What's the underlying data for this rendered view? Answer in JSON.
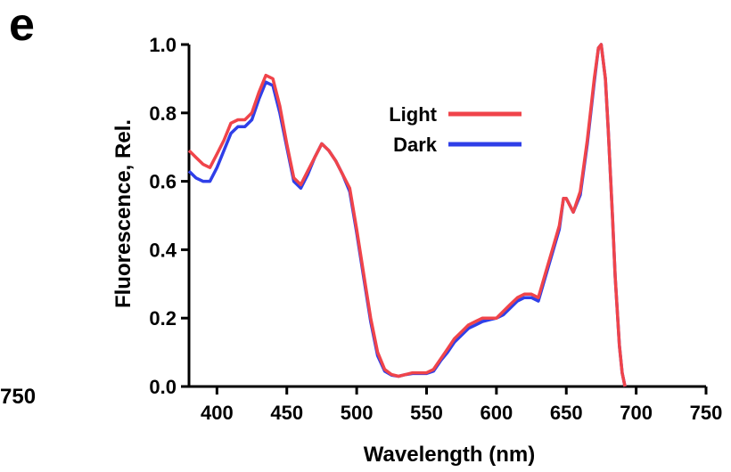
{
  "panel_label": "e",
  "clipped_label": "750",
  "chart_data": {
    "type": "line",
    "title": "",
    "xlabel": "Wavelength (nm)",
    "ylabel": "Fluorescence, Rel.",
    "xlim": [
      380,
      750
    ],
    "ylim": [
      0,
      1.0
    ],
    "xticks": [
      400,
      450,
      500,
      550,
      600,
      650,
      700,
      750
    ],
    "yticks": [
      "0.0",
      "0.2",
      "0.4",
      "0.6",
      "0.8",
      "1.0"
    ],
    "legend_position": "top-center",
    "grid": false,
    "series": [
      {
        "name": "Light",
        "color": "#f0444a",
        "x": [
          380,
          385,
          390,
          395,
          400,
          405,
          410,
          415,
          420,
          425,
          430,
          435,
          440,
          445,
          450,
          455,
          460,
          465,
          470,
          475,
          480,
          485,
          490,
          495,
          500,
          505,
          510,
          515,
          520,
          525,
          530,
          535,
          540,
          545,
          550,
          555,
          560,
          565,
          570,
          575,
          580,
          585,
          590,
          595,
          600,
          605,
          610,
          615,
          620,
          625,
          630,
          635,
          640,
          645,
          648,
          650,
          655,
          660,
          665,
          670,
          673,
          675,
          678,
          680,
          683,
          685,
          688,
          690,
          692
        ],
        "y": [
          0.69,
          0.67,
          0.65,
          0.64,
          0.68,
          0.72,
          0.77,
          0.78,
          0.78,
          0.8,
          0.86,
          0.91,
          0.9,
          0.82,
          0.71,
          0.61,
          0.59,
          0.63,
          0.67,
          0.71,
          0.69,
          0.66,
          0.62,
          0.58,
          0.46,
          0.33,
          0.2,
          0.1,
          0.05,
          0.035,
          0.03,
          0.035,
          0.04,
          0.04,
          0.04,
          0.05,
          0.08,
          0.11,
          0.14,
          0.16,
          0.18,
          0.19,
          0.2,
          0.2,
          0.2,
          0.22,
          0.24,
          0.26,
          0.27,
          0.27,
          0.26,
          0.33,
          0.4,
          0.47,
          0.55,
          0.55,
          0.51,
          0.57,
          0.72,
          0.9,
          0.99,
          1.0,
          0.9,
          0.75,
          0.5,
          0.32,
          0.12,
          0.04,
          0.0
        ]
      },
      {
        "name": "Dark",
        "color": "#2f3fe8",
        "x": [
          380,
          385,
          390,
          395,
          400,
          405,
          410,
          415,
          420,
          425,
          430,
          435,
          440,
          445,
          450,
          455,
          460,
          465,
          470,
          475,
          480,
          485,
          490,
          495,
          500,
          505,
          510,
          515,
          520,
          525,
          530,
          535,
          540,
          545,
          550,
          555,
          560,
          565,
          570,
          575,
          580,
          585,
          590,
          595,
          600,
          605,
          610,
          615,
          620,
          625,
          630,
          635,
          640,
          645,
          648,
          650,
          655,
          660,
          665,
          670,
          673,
          675,
          678,
          680,
          683,
          685,
          688,
          690,
          692
        ],
        "y": [
          0.63,
          0.61,
          0.6,
          0.6,
          0.64,
          0.69,
          0.74,
          0.76,
          0.76,
          0.78,
          0.84,
          0.89,
          0.88,
          0.8,
          0.7,
          0.6,
          0.58,
          0.62,
          0.67,
          0.71,
          0.69,
          0.66,
          0.62,
          0.57,
          0.45,
          0.32,
          0.19,
          0.09,
          0.045,
          0.033,
          0.03,
          0.035,
          0.038,
          0.038,
          0.038,
          0.045,
          0.075,
          0.1,
          0.13,
          0.15,
          0.17,
          0.18,
          0.19,
          0.195,
          0.2,
          0.21,
          0.23,
          0.25,
          0.26,
          0.26,
          0.25,
          0.32,
          0.39,
          0.46,
          0.55,
          0.55,
          0.51,
          0.56,
          0.71,
          0.89,
          0.99,
          1.0,
          0.9,
          0.75,
          0.5,
          0.32,
          0.12,
          0.04,
          0.0
        ]
      }
    ]
  }
}
